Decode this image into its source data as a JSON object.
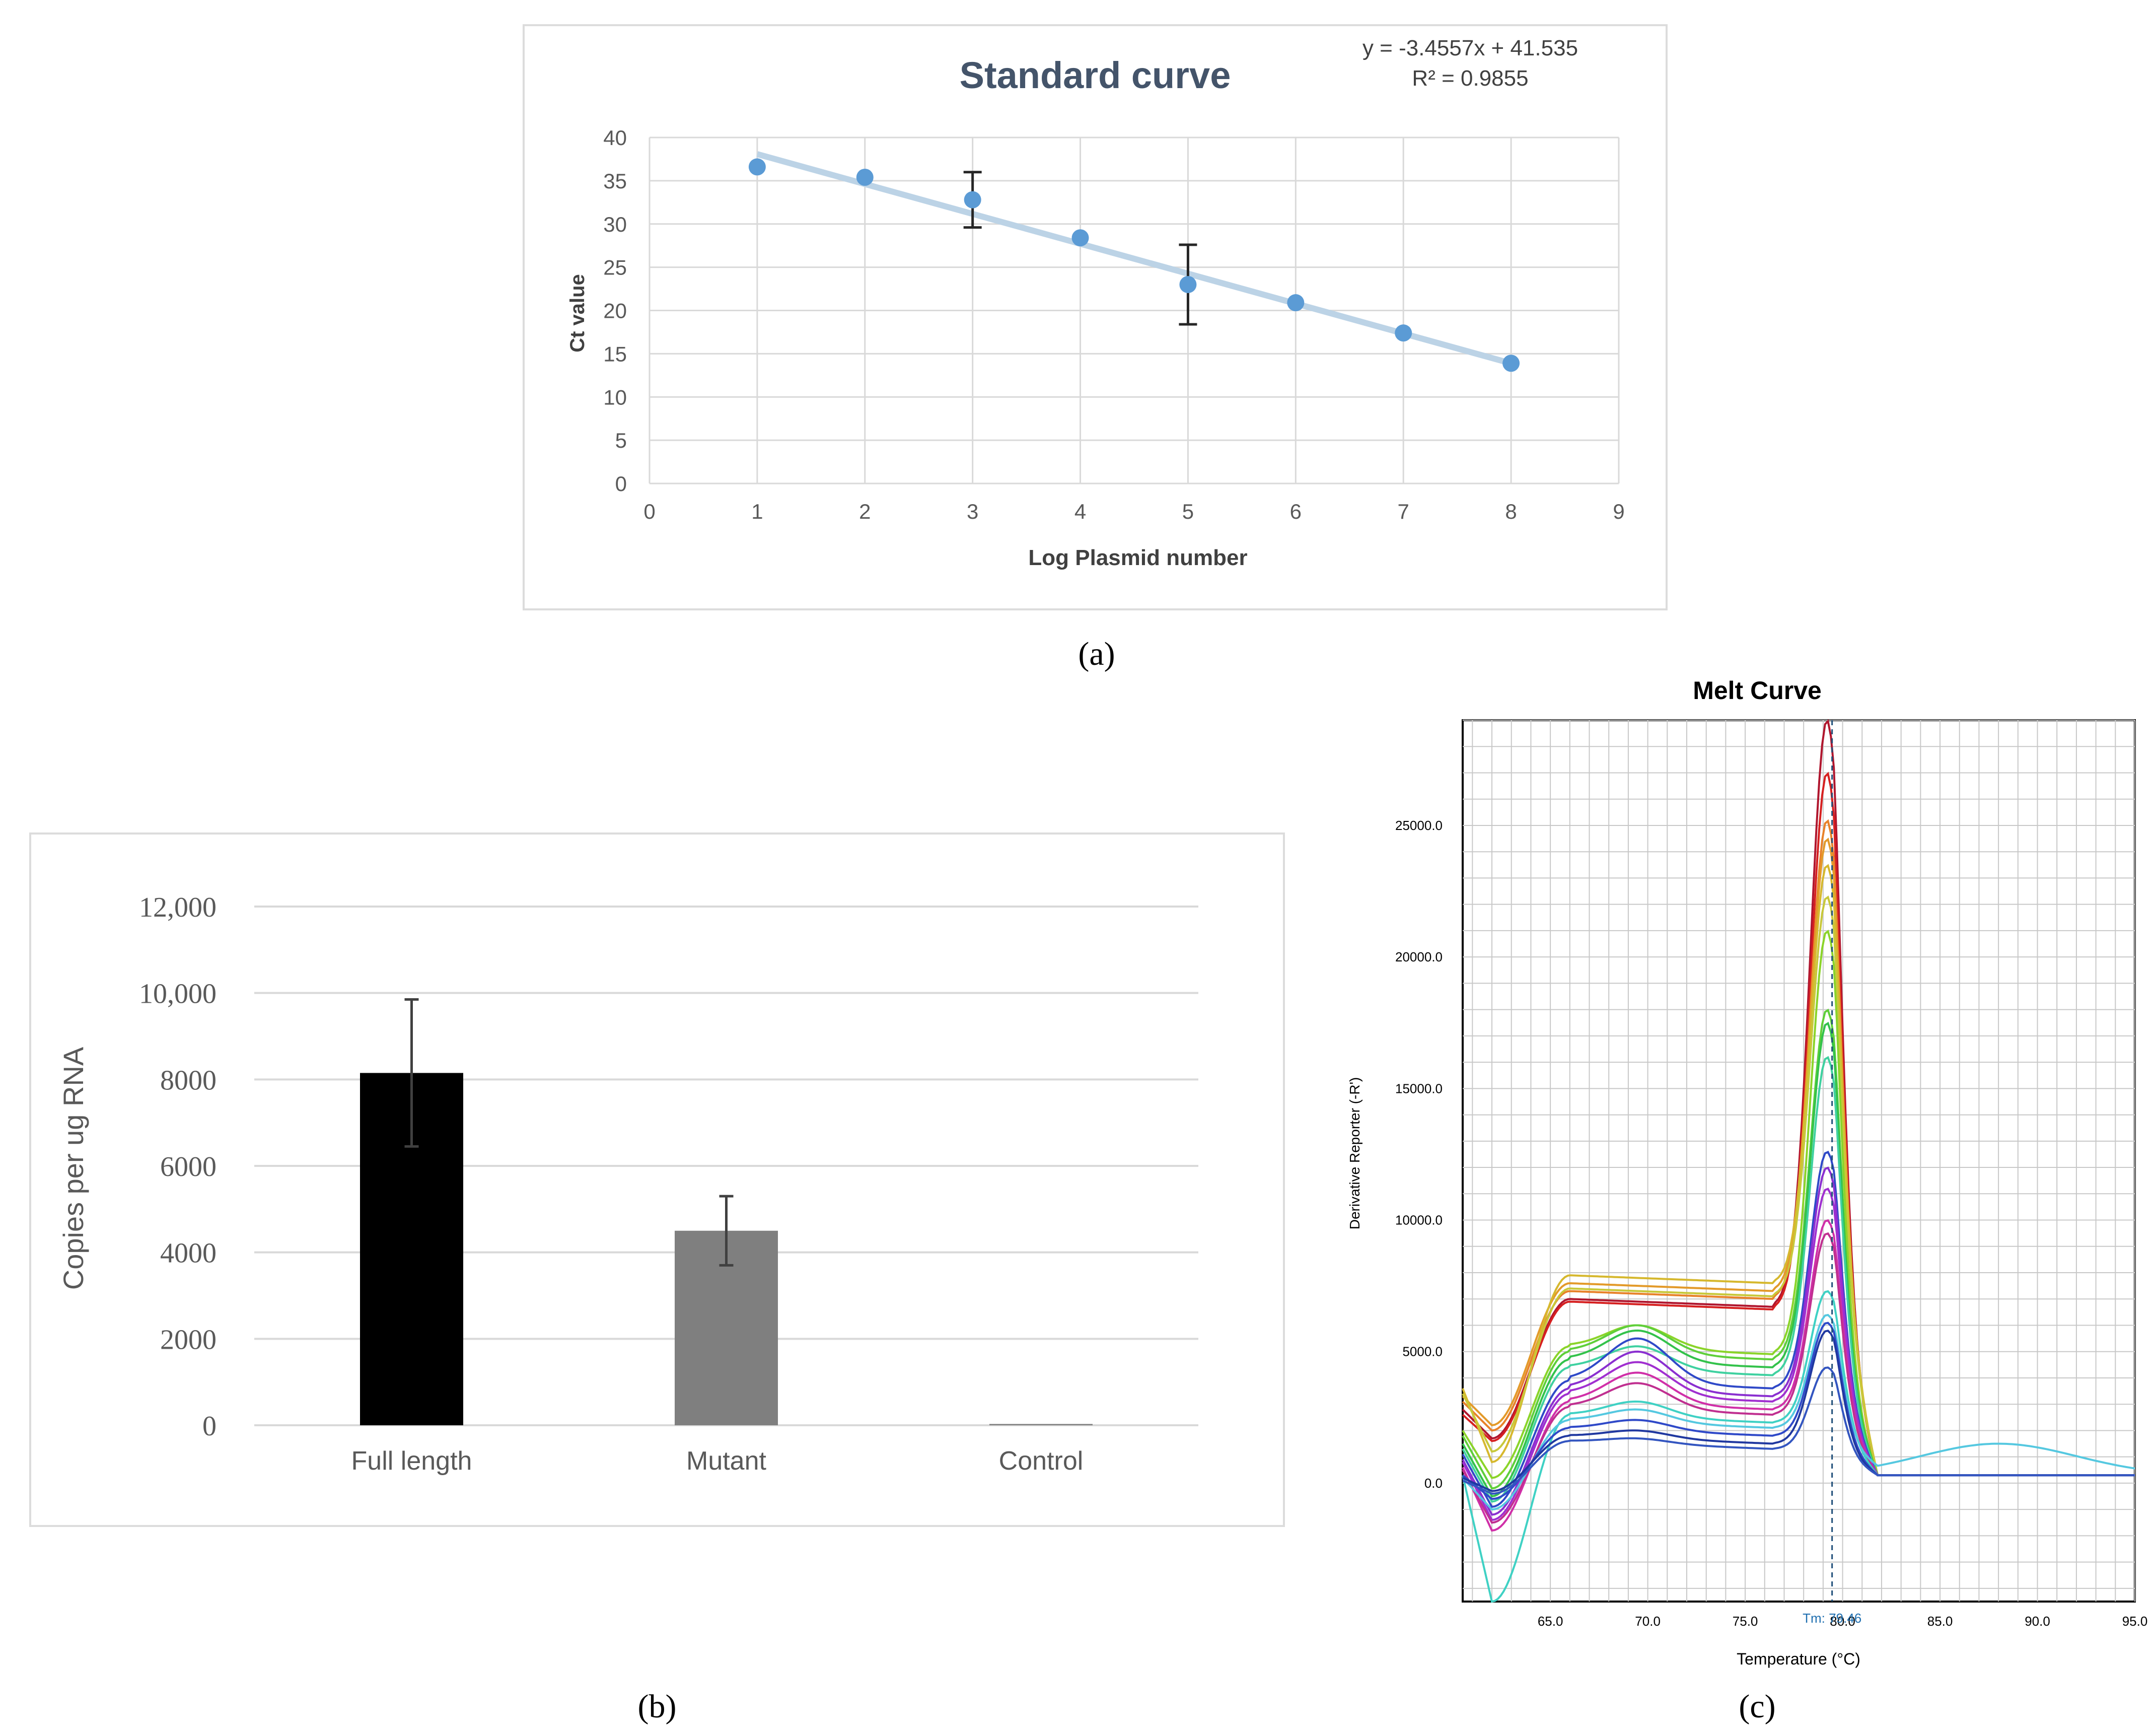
{
  "panel_labels": {
    "a": "(a)",
    "b": "(b)",
    "c": "(c)"
  },
  "colors": {
    "point": "#5b9bd5",
    "trend": "#bcd3e6",
    "bar_full": "#000000",
    "bar_mutant": "#7f7f7f",
    "melt_palette": [
      "#d62020",
      "#e8822a",
      "#d6b82e",
      "#8bd42a",
      "#33c24b",
      "#3fd1c4",
      "#2f49c8",
      "#8a2fd0",
      "#d02fa8",
      "#b0162e"
    ]
  },
  "chart_data": [
    {
      "type": "scatter",
      "title": "Standard curve",
      "equation": "y = -3.4557x + 41.535",
      "r2": "R² = 0.9855",
      "xlabel": "Log Plasmid number",
      "ylabel": "Ct value",
      "xlim": [
        0,
        9
      ],
      "ylim": [
        0,
        40
      ],
      "xticks": [
        "0",
        "1",
        "2",
        "3",
        "4",
        "5",
        "6",
        "7",
        "8",
        "9"
      ],
      "yticks": [
        "0",
        "5",
        "10",
        "15",
        "20",
        "25",
        "30",
        "35",
        "40"
      ],
      "grid": true,
      "x": [
        1,
        2,
        3,
        4,
        5,
        6,
        7,
        8
      ],
      "y": [
        36.6,
        35.4,
        32.8,
        28.4,
        23.0,
        20.9,
        17.4,
        13.9
      ],
      "error": [
        null,
        null,
        3.2,
        null,
        4.6,
        null,
        null,
        null
      ],
      "trendline": {
        "slope": -3.4557,
        "intercept": 41.535
      }
    },
    {
      "type": "bar",
      "ylabel": "Copies per ug RNA",
      "categories": [
        "Full length",
        "Mutant",
        "Control"
      ],
      "values": [
        8150,
        4500,
        30
      ],
      "error": [
        1700,
        800,
        0
      ],
      "ylim": [
        0,
        12000
      ],
      "yticks": [
        "0",
        "2000",
        "4000",
        "6000",
        "8000",
        "10,000",
        "12,000"
      ],
      "grid": true
    },
    {
      "type": "line",
      "title": "Melt Curve",
      "xlabel": "Temperature (°C)",
      "ylabel": "Derivative Reporter (-R')",
      "xlim": [
        60.5,
        95
      ],
      "ylim": [
        -4500,
        29000
      ],
      "xticks": [
        "65.0",
        "70.0",
        "75.0",
        "80.0",
        "85.0",
        "90.0",
        "95.0"
      ],
      "yticks": [
        "0.0",
        "5000.0",
        "10000.0",
        "15000.0",
        "20000.0",
        "25000.0"
      ],
      "tm_label": "Tm: 79.46",
      "tm": 79.46,
      "grid": true,
      "series": [
        {
          "color": "#b0162e",
          "plateau": 7000,
          "peak": 29000,
          "start": 2800,
          "dip": 1700,
          "hump": 0
        },
        {
          "color": "#d62020",
          "plateau": 6900,
          "peak": 27000,
          "start": 2600,
          "dip": 1600,
          "hump": 0
        },
        {
          "color": "#e8822a",
          "plateau": 7300,
          "peak": 25200,
          "start": 3100,
          "dip": 2000,
          "hump": 0
        },
        {
          "color": "#e39a2a",
          "plateau": 7600,
          "peak": 24500,
          "start": 3300,
          "dip": 2200,
          "hump": 0
        },
        {
          "color": "#d6b82e",
          "plateau": 7900,
          "peak": 23500,
          "start": 3600,
          "dip": 800,
          "hump": 0
        },
        {
          "color": "#c8c83a",
          "plateau": 7400,
          "peak": 22300,
          "start": 3400,
          "dip": 1200,
          "hump": 0
        },
        {
          "color": "#8bd42a",
          "plateau": 5200,
          "peak": 21000,
          "start": 2000,
          "dip": 200,
          "hump": 900
        },
        {
          "color": "#5fcf3a",
          "plateau": 5000,
          "peak": 18000,
          "start": 1800,
          "dip": -200,
          "hump": 1100
        },
        {
          "color": "#33c24b",
          "plateau": 4700,
          "peak": 17500,
          "start": 1500,
          "dip": -500,
          "hump": 1200
        },
        {
          "color": "#3fd1a0",
          "plateau": 4400,
          "peak": 16200,
          "start": 1300,
          "dip": -700,
          "hump": 900
        },
        {
          "color": "#2f49c8",
          "plateau": 3900,
          "peak": 12600,
          "start": 1100,
          "dip": -900,
          "hump": 1700
        },
        {
          "color": "#8a2fd0",
          "plateau": 3600,
          "peak": 12000,
          "start": 900,
          "dip": -1200,
          "hump": 1500
        },
        {
          "color": "#a02fd0",
          "plateau": 3400,
          "peak": 11200,
          "start": 800,
          "dip": -1400,
          "hump": 1300
        },
        {
          "color": "#d02fa8",
          "plateau": 3100,
          "peak": 10000,
          "start": 600,
          "dip": -1800,
          "hump": 1200
        },
        {
          "color": "#c02f90",
          "plateau": 2900,
          "peak": 9500,
          "start": 500,
          "dip": -1500,
          "hump": 1000
        },
        {
          "color": "#3fd1c4",
          "plateau": 2600,
          "peak": 7300,
          "start": 300,
          "dip": -4500,
          "hump": 600
        },
        {
          "color": "#55c8e0",
          "plateau": 2400,
          "peak": 6400,
          "start": 200,
          "dip": -1000,
          "hump": 500
        },
        {
          "color": "#2f49c8",
          "plateau": 2100,
          "peak": 6100,
          "start": 300,
          "dip": -600,
          "hump": 400
        },
        {
          "color": "#2038a0",
          "plateau": 1800,
          "peak": 5800,
          "start": 200,
          "dip": -300,
          "hump": 300
        },
        {
          "color": "#3355c0",
          "plateau": 1600,
          "peak": 4400,
          "start": 100,
          "dip": -400,
          "hump": 200
        }
      ]
    }
  ]
}
